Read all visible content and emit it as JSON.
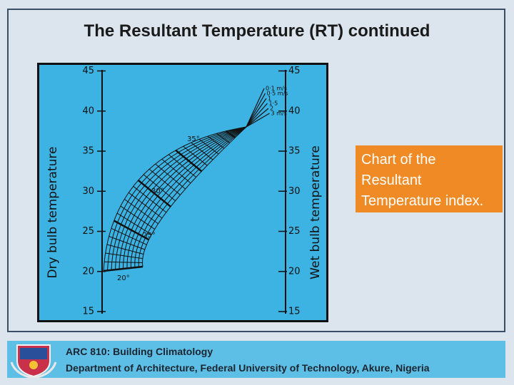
{
  "header": {
    "title": "The Resultant Temperature (RT) continued"
  },
  "figure": {
    "left_axis_label": "Dry bulb temperature",
    "right_axis_label": "Wet bulb temperature",
    "left_ticks": [
      45,
      40,
      35,
      30,
      25,
      20,
      15
    ],
    "right_ticks": [
      45,
      40,
      35,
      30,
      25,
      20,
      15
    ],
    "wind_speeds": [
      "0·1 m/s",
      "0·5 m/s",
      "1",
      "1·5",
      "2",
      "3 m/s"
    ],
    "curve_labels": [
      "35°",
      "30°",
      "25°",
      "20°"
    ]
  },
  "callout": {
    "text": "Chart of the Resultant Temperature index."
  },
  "footer": {
    "course": "ARC 810: Building Climatology",
    "department": "Department of Architecture, Federal University of Technology, Akure, Nigeria"
  }
}
